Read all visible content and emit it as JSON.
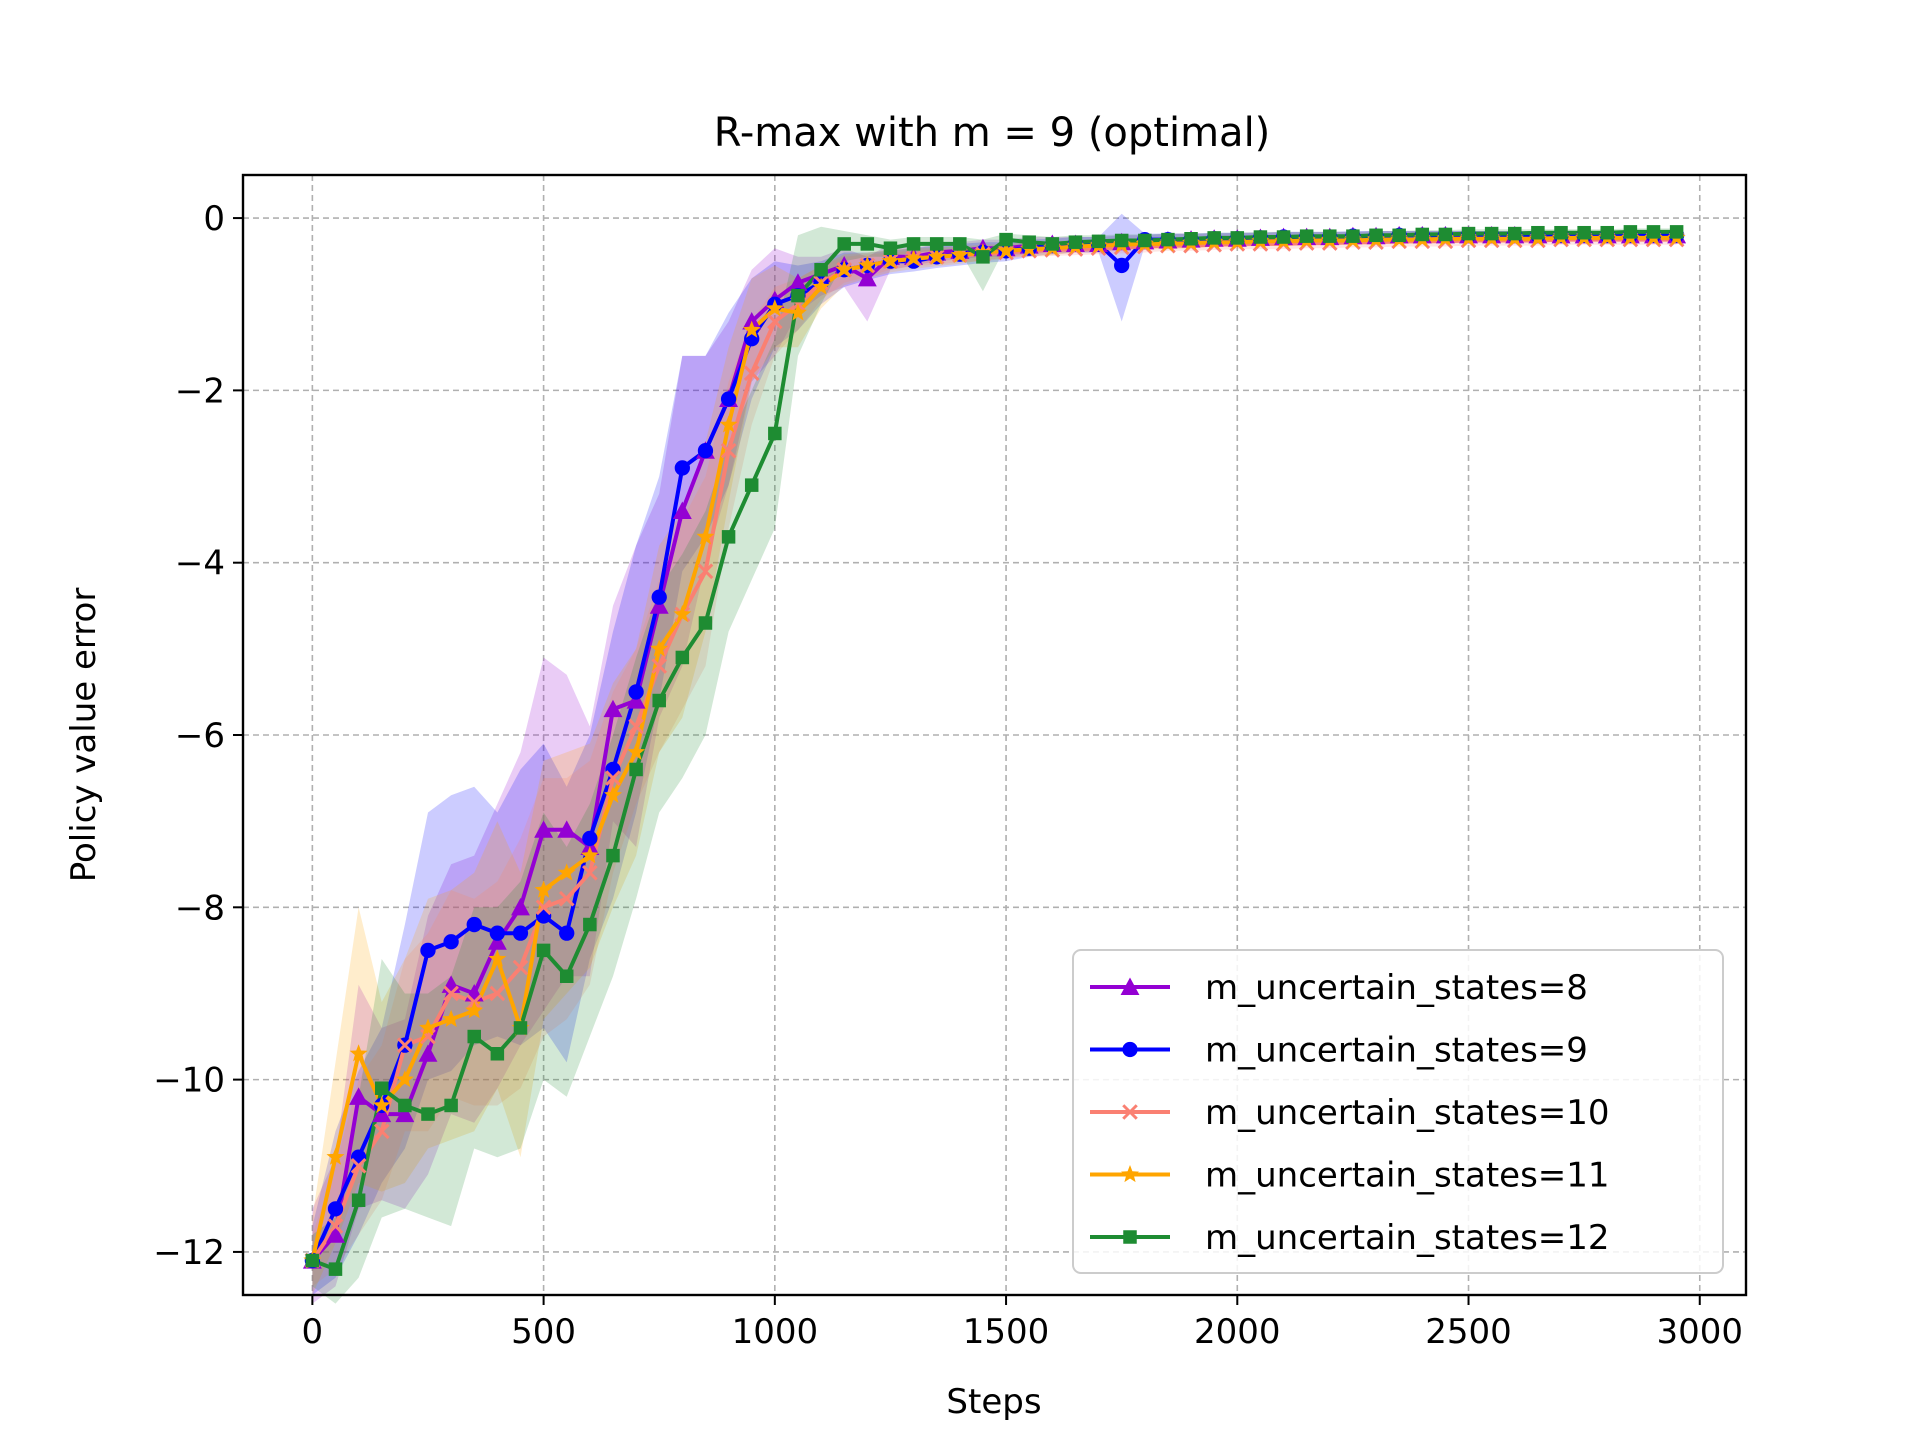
{
  "chart_data": {
    "type": "line",
    "title": "R-max with m = 9 (optimal)",
    "xlabel": "Steps",
    "ylabel": "Policy value error",
    "xlim": [
      -150,
      3100
    ],
    "ylim": [
      -12.5,
      0.5
    ],
    "xticks": [
      0,
      500,
      1000,
      1500,
      2000,
      2500,
      3000
    ],
    "xtick_labels": [
      "0",
      "500",
      "1000",
      "1500",
      "2000",
      "2500",
      "3000"
    ],
    "yticks": [
      0,
      -2,
      -4,
      -6,
      -8,
      -10,
      -12
    ],
    "ytick_labels": [
      "0",
      "−2",
      "−4",
      "−6",
      "−8",
      "−10",
      "−12"
    ],
    "grid": true,
    "legend_position": "lower-right",
    "x": [
      0,
      50,
      100,
      150,
      200,
      250,
      300,
      350,
      400,
      450,
      500,
      550,
      600,
      650,
      700,
      750,
      800,
      850,
      900,
      950,
      1000,
      1050,
      1100,
      1150,
      1200,
      1250,
      1300,
      1350,
      1400,
      1450,
      1500,
      1550,
      1600,
      1650,
      1700,
      1750,
      1800,
      1850,
      1900,
      1950,
      2000,
      2050,
      2100,
      2150,
      2200,
      2250,
      2300,
      2350,
      2400,
      2450,
      2500,
      2550,
      2600,
      2650,
      2700,
      2750,
      2800,
      2850,
      2900,
      2950
    ],
    "series": [
      {
        "name": "m_uncertain_states=8",
        "color": "#9400d3",
        "marker": "triangle",
        "values": [
          -12.1,
          -11.8,
          -10.2,
          -10.4,
          -10.4,
          -9.7,
          -8.9,
          -9.0,
          -8.4,
          -8.0,
          -7.1,
          -7.1,
          -7.3,
          -5.7,
          -5.6,
          -4.5,
          -3.4,
          -2.7,
          -2.1,
          -1.2,
          -0.95,
          -0.75,
          -0.65,
          -0.55,
          -0.7,
          -0.45,
          -0.45,
          -0.4,
          -0.38,
          -0.35,
          -0.35,
          -0.32,
          -0.3,
          -0.3,
          -0.3,
          -0.28,
          -0.27,
          -0.26,
          -0.25,
          -0.24,
          -0.24,
          -0.23,
          -0.22,
          -0.22,
          -0.22,
          -0.21,
          -0.21,
          -0.2,
          -0.2,
          -0.2,
          -0.2,
          -0.2,
          -0.2,
          -0.2,
          -0.2,
          -0.2,
          -0.2,
          -0.2,
          -0.2,
          -0.2
        ],
        "upper": [
          -11.5,
          -10.9,
          -8.9,
          -9.4,
          -9.3,
          -8.1,
          -7.5,
          -7.4,
          -6.8,
          -6.2,
          -5.1,
          -5.3,
          -5.9,
          -4.5,
          -3.8,
          -3.2,
          -1.6,
          -1.6,
          -1.2,
          -0.6,
          -0.35,
          -0.45,
          -0.45,
          -0.35,
          -0.45,
          -0.3,
          -0.35,
          -0.3,
          -0.28,
          -0.25,
          -0.25,
          -0.22,
          -0.22,
          -0.22,
          -0.22,
          -0.2,
          -0.2,
          -0.18,
          -0.18,
          -0.18,
          -0.17,
          -0.17,
          -0.16,
          -0.16,
          -0.16,
          -0.16,
          -0.15,
          -0.15,
          -0.15,
          -0.15,
          -0.15,
          -0.15,
          -0.15,
          -0.15,
          -0.15,
          -0.15,
          -0.15,
          -0.15,
          -0.15,
          -0.15
        ],
        "lower": [
          -12.6,
          -12.4,
          -11.5,
          -11.4,
          -11.5,
          -11.1,
          -10.4,
          -10.5,
          -10.1,
          -9.6,
          -9.2,
          -8.8,
          -8.8,
          -7.0,
          -7.3,
          -5.8,
          -5.2,
          -4.0,
          -3.1,
          -1.9,
          -1.6,
          -1.1,
          -0.9,
          -0.8,
          -1.2,
          -0.6,
          -0.55,
          -0.5,
          -0.48,
          -0.45,
          -0.45,
          -0.42,
          -0.4,
          -0.4,
          -0.4,
          -0.36,
          -0.34,
          -0.33,
          -0.32,
          -0.31,
          -0.31,
          -0.3,
          -0.28,
          -0.28,
          -0.28,
          -0.27,
          -0.27,
          -0.26,
          -0.26,
          -0.26,
          -0.26,
          -0.26,
          -0.26,
          -0.26,
          -0.26,
          -0.26,
          -0.26,
          -0.26,
          -0.26,
          -0.26
        ]
      },
      {
        "name": "m_uncertain_states=9",
        "color": "#0000ff",
        "marker": "circle",
        "values": [
          -12.1,
          -11.5,
          -10.9,
          -10.3,
          -9.6,
          -8.5,
          -8.4,
          -8.2,
          -8.3,
          -8.3,
          -8.1,
          -8.3,
          -7.2,
          -6.4,
          -5.5,
          -4.4,
          -2.9,
          -2.7,
          -2.1,
          -1.4,
          -1.0,
          -0.9,
          -0.75,
          -0.6,
          -0.55,
          -0.5,
          -0.5,
          -0.45,
          -0.42,
          -0.4,
          -0.38,
          -0.35,
          -0.32,
          -0.3,
          -0.3,
          -0.55,
          -0.25,
          -0.25,
          -0.25,
          -0.24,
          -0.24,
          -0.23,
          -0.22,
          -0.22,
          -0.22,
          -0.21,
          -0.21,
          -0.2,
          -0.2,
          -0.2,
          -0.2,
          -0.2,
          -0.2,
          -0.2,
          -0.2,
          -0.2,
          -0.2,
          -0.2,
          -0.2,
          -0.2
        ],
        "upper": [
          -11.7,
          -10.6,
          -9.9,
          -9.4,
          -8.2,
          -6.9,
          -6.7,
          -6.6,
          -6.9,
          -6.4,
          -6.1,
          -6.6,
          -6.0,
          -4.8,
          -3.8,
          -3.0,
          -1.6,
          -1.6,
          -1.1,
          -0.7,
          -0.5,
          -0.55,
          -0.5,
          -0.4,
          -0.4,
          -0.38,
          -0.35,
          -0.32,
          -0.3,
          -0.28,
          -0.28,
          -0.25,
          -0.24,
          -0.22,
          -0.22,
          0.05,
          -0.18,
          -0.18,
          -0.18,
          -0.17,
          -0.17,
          -0.17,
          -0.16,
          -0.16,
          -0.16,
          -0.15,
          -0.15,
          -0.15,
          -0.15,
          -0.15,
          -0.15,
          -0.15,
          -0.15,
          -0.15,
          -0.15,
          -0.15,
          -0.15,
          -0.15,
          -0.15,
          -0.15
        ],
        "lower": [
          -12.5,
          -12.3,
          -11.8,
          -11.2,
          -10.8,
          -10.0,
          -9.9,
          -9.6,
          -9.5,
          -9.6,
          -9.4,
          -9.8,
          -8.6,
          -7.9,
          -6.9,
          -5.6,
          -4.1,
          -3.7,
          -3.1,
          -2.1,
          -1.5,
          -1.3,
          -1.0,
          -0.8,
          -0.72,
          -0.65,
          -0.62,
          -0.58,
          -0.55,
          -0.52,
          -0.5,
          -0.45,
          -0.42,
          -0.4,
          -0.4,
          -1.2,
          -0.32,
          -0.32,
          -0.32,
          -0.31,
          -0.31,
          -0.3,
          -0.29,
          -0.29,
          -0.29,
          -0.28,
          -0.28,
          -0.27,
          -0.27,
          -0.27,
          -0.27,
          -0.27,
          -0.27,
          -0.27,
          -0.27,
          -0.27,
          -0.27,
          -0.27,
          -0.27,
          -0.27
        ]
      },
      {
        "name": "m_uncertain_states=10",
        "color": "#fa8072",
        "marker": "x",
        "values": [
          -12.1,
          -11.7,
          -11.0,
          -10.6,
          -9.6,
          -9.5,
          -9.0,
          -9.1,
          -9.0,
          -8.7,
          -8.0,
          -7.9,
          -7.6,
          -6.5,
          -5.9,
          -5.2,
          -4.6,
          -4.1,
          -2.7,
          -1.8,
          -1.2,
          -1.0,
          -0.75,
          -0.6,
          -0.55,
          -0.5,
          -0.47,
          -0.45,
          -0.43,
          -0.42,
          -0.4,
          -0.38,
          -0.37,
          -0.36,
          -0.35,
          -0.34,
          -0.33,
          -0.32,
          -0.32,
          -0.31,
          -0.3,
          -0.3,
          -0.3,
          -0.29,
          -0.29,
          -0.28,
          -0.28,
          -0.27,
          -0.27,
          -0.27,
          -0.26,
          -0.26,
          -0.26,
          -0.26,
          -0.25,
          -0.25,
          -0.25,
          -0.25,
          -0.25,
          -0.25
        ],
        "upper": [
          -11.8,
          -11.0,
          -10.0,
          -9.6,
          -8.6,
          -8.3,
          -7.8,
          -7.9,
          -7.7,
          -7.2,
          -6.5,
          -6.5,
          -6.3,
          -5.5,
          -5.0,
          -4.2,
          -3.5,
          -3.0,
          -1.9,
          -1.2,
          -0.8,
          -0.7,
          -0.55,
          -0.45,
          -0.42,
          -0.4,
          -0.38,
          -0.36,
          -0.35,
          -0.34,
          -0.33,
          -0.31,
          -0.3,
          -0.29,
          -0.28,
          -0.27,
          -0.27,
          -0.26,
          -0.26,
          -0.25,
          -0.25,
          -0.25,
          -0.24,
          -0.24,
          -0.24,
          -0.23,
          -0.23,
          -0.22,
          -0.22,
          -0.22,
          -0.22,
          -0.22,
          -0.22,
          -0.22,
          -0.21,
          -0.21,
          -0.21,
          -0.21,
          -0.21,
          -0.21
        ],
        "lower": [
          -12.4,
          -12.2,
          -11.8,
          -11.4,
          -10.6,
          -10.6,
          -10.2,
          -10.3,
          -10.3,
          -10.1,
          -9.5,
          -9.3,
          -8.9,
          -7.6,
          -6.8,
          -6.2,
          -5.7,
          -5.2,
          -3.6,
          -2.4,
          -1.6,
          -1.3,
          -0.95,
          -0.75,
          -0.68,
          -0.6,
          -0.56,
          -0.54,
          -0.51,
          -0.5,
          -0.47,
          -0.45,
          -0.44,
          -0.43,
          -0.42,
          -0.41,
          -0.4,
          -0.38,
          -0.38,
          -0.37,
          -0.36,
          -0.36,
          -0.36,
          -0.35,
          -0.35,
          -0.34,
          -0.34,
          -0.33,
          -0.33,
          -0.33,
          -0.32,
          -0.32,
          -0.32,
          -0.32,
          -0.31,
          -0.31,
          -0.31,
          -0.31,
          -0.31,
          -0.31
        ]
      },
      {
        "name": "m_uncertain_states=11",
        "color": "#ffa500",
        "marker": "star",
        "values": [
          -12.1,
          -10.9,
          -9.7,
          -10.3,
          -10.0,
          -9.4,
          -9.3,
          -9.2,
          -8.6,
          -9.4,
          -7.8,
          -7.6,
          -7.4,
          -6.7,
          -6.2,
          -5.0,
          -4.6,
          -3.7,
          -2.4,
          -1.3,
          -1.05,
          -1.1,
          -0.8,
          -0.6,
          -0.55,
          -0.5,
          -0.47,
          -0.45,
          -0.43,
          -0.4,
          -0.38,
          -0.36,
          -0.35,
          -0.33,
          -0.32,
          -0.31,
          -0.3,
          -0.3,
          -0.29,
          -0.28,
          -0.28,
          -0.27,
          -0.27,
          -0.26,
          -0.26,
          -0.26,
          -0.25,
          -0.25,
          -0.25,
          -0.24,
          -0.24,
          -0.24,
          -0.24,
          -0.24,
          -0.23,
          -0.23,
          -0.23,
          -0.23,
          -0.23,
          -0.23
        ],
        "upper": [
          -11.6,
          -9.8,
          -8.0,
          -9.1,
          -8.6,
          -7.9,
          -7.8,
          -7.6,
          -7.0,
          -7.6,
          -6.3,
          -6.2,
          -6.1,
          -5.4,
          -5.0,
          -3.8,
          -3.4,
          -2.6,
          -1.5,
          -0.7,
          -0.55,
          -0.7,
          -0.55,
          -0.42,
          -0.4,
          -0.37,
          -0.35,
          -0.34,
          -0.33,
          -0.31,
          -0.3,
          -0.28,
          -0.27,
          -0.26,
          -0.25,
          -0.25,
          -0.24,
          -0.24,
          -0.23,
          -0.23,
          -0.22,
          -0.22,
          -0.22,
          -0.21,
          -0.21,
          -0.21,
          -0.2,
          -0.2,
          -0.2,
          -0.2,
          -0.2,
          -0.2,
          -0.2,
          -0.2,
          -0.19,
          -0.19,
          -0.19,
          -0.19,
          -0.19,
          -0.19
        ],
        "lower": [
          -12.5,
          -11.9,
          -11.2,
          -11.3,
          -11.2,
          -10.8,
          -10.7,
          -10.6,
          -10.1,
          -10.9,
          -9.3,
          -9.0,
          -8.7,
          -8.0,
          -7.4,
          -6.2,
          -5.8,
          -4.8,
          -3.3,
          -1.9,
          -1.5,
          -1.5,
          -1.05,
          -0.78,
          -0.7,
          -0.63,
          -0.59,
          -0.56,
          -0.53,
          -0.49,
          -0.46,
          -0.44,
          -0.43,
          -0.4,
          -0.39,
          -0.37,
          -0.36,
          -0.36,
          -0.35,
          -0.33,
          -0.34,
          -0.32,
          -0.32,
          -0.31,
          -0.31,
          -0.31,
          -0.3,
          -0.3,
          -0.3,
          -0.28,
          -0.28,
          -0.28,
          -0.28,
          -0.28,
          -0.27,
          -0.27,
          -0.27,
          -0.27,
          -0.27,
          -0.27
        ]
      },
      {
        "name": "m_uncertain_states=12",
        "color": "#1e8c32",
        "marker": "square",
        "values": [
          -12.1,
          -12.2,
          -11.4,
          -10.1,
          -10.3,
          -10.4,
          -10.3,
          -9.5,
          -9.7,
          -9.4,
          -8.5,
          -8.8,
          -8.2,
          -7.4,
          -6.4,
          -5.6,
          -5.1,
          -4.7,
          -3.7,
          -3.1,
          -2.5,
          -0.9,
          -0.6,
          -0.3,
          -0.3,
          -0.35,
          -0.3,
          -0.3,
          -0.3,
          -0.45,
          -0.25,
          -0.28,
          -0.3,
          -0.28,
          -0.27,
          -0.26,
          -0.26,
          -0.25,
          -0.24,
          -0.23,
          -0.23,
          -0.22,
          -0.22,
          -0.21,
          -0.21,
          -0.21,
          -0.2,
          -0.2,
          -0.19,
          -0.19,
          -0.18,
          -0.18,
          -0.18,
          -0.17,
          -0.17,
          -0.17,
          -0.17,
          -0.16,
          -0.16,
          -0.16
        ],
        "upper": [
          -11.8,
          -11.6,
          -10.2,
          -8.6,
          -9.0,
          -9.0,
          -8.8,
          -8.0,
          -8.0,
          -7.7,
          -6.9,
          -7.3,
          -6.8,
          -6.0,
          -5.1,
          -4.3,
          -3.9,
          -3.4,
          -2.6,
          -2.0,
          -1.4,
          -0.2,
          -0.1,
          -0.15,
          -0.2,
          -0.25,
          -0.22,
          -0.22,
          -0.22,
          -0.25,
          -0.18,
          -0.2,
          -0.22,
          -0.2,
          -0.2,
          -0.19,
          -0.19,
          -0.18,
          -0.18,
          -0.17,
          -0.17,
          -0.16,
          -0.16,
          -0.16,
          -0.16,
          -0.16,
          -0.15,
          -0.15,
          -0.14,
          -0.14,
          -0.13,
          -0.13,
          -0.13,
          -0.13,
          -0.13,
          -0.13,
          -0.13,
          -0.12,
          -0.12,
          -0.12
        ],
        "lower": [
          -12.4,
          -12.6,
          -12.3,
          -11.6,
          -11.5,
          -11.6,
          -11.7,
          -10.8,
          -10.9,
          -10.8,
          -10.0,
          -10.2,
          -9.5,
          -8.8,
          -7.9,
          -6.9,
          -6.5,
          -6.0,
          -4.8,
          -4.2,
          -3.6,
          -1.6,
          -1.0,
          -0.5,
          -0.45,
          -0.45,
          -0.4,
          -0.38,
          -0.38,
          -0.85,
          -0.32,
          -0.36,
          -0.38,
          -0.36,
          -0.34,
          -0.33,
          -0.33,
          -0.32,
          -0.3,
          -0.29,
          -0.29,
          -0.28,
          -0.28,
          -0.26,
          -0.26,
          -0.26,
          -0.25,
          -0.25,
          -0.24,
          -0.24,
          -0.23,
          -0.23,
          -0.23,
          -0.21,
          -0.21,
          -0.21,
          -0.21,
          -0.2,
          -0.2,
          -0.2
        ]
      }
    ]
  }
}
